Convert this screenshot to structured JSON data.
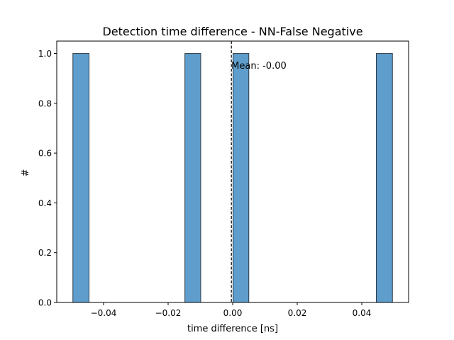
{
  "chart_data": {
    "type": "bar",
    "title": "Detection time difference - NN-False Negative",
    "xlabel": "time difference [ns]",
    "ylabel": "#",
    "xlim": [
      -0.0545,
      0.0545
    ],
    "ylim": [
      0,
      1.05
    ],
    "x_ticks": [
      -0.04,
      -0.02,
      0.0,
      0.02,
      0.04
    ],
    "x_tick_labels": [
      "−0.04",
      "−0.02",
      "0.00",
      "0.02",
      "0.04"
    ],
    "y_ticks": [
      0.0,
      0.2,
      0.4,
      0.6,
      0.8,
      1.0
    ],
    "y_tick_labels": [
      "0.0",
      "0.2",
      "0.4",
      "0.6",
      "0.8",
      "1.0"
    ],
    "bins": [
      {
        "x0": -0.0495,
        "x1": -0.0445,
        "count": 1
      },
      {
        "x0": -0.0148,
        "x1": -0.0099,
        "count": 1
      },
      {
        "x0": 0.0001,
        "x1": 0.005,
        "count": 1
      },
      {
        "x0": 0.0445,
        "x1": 0.0495,
        "count": 1
      }
    ],
    "mean_line": {
      "x": -0.0004,
      "label": "Mean: -0.00"
    },
    "bar_color": "#5f9ecc",
    "bar_edge_color": "#2b3a47",
    "mean_line_color": "#000000",
    "grid": false,
    "legend": "none"
  }
}
